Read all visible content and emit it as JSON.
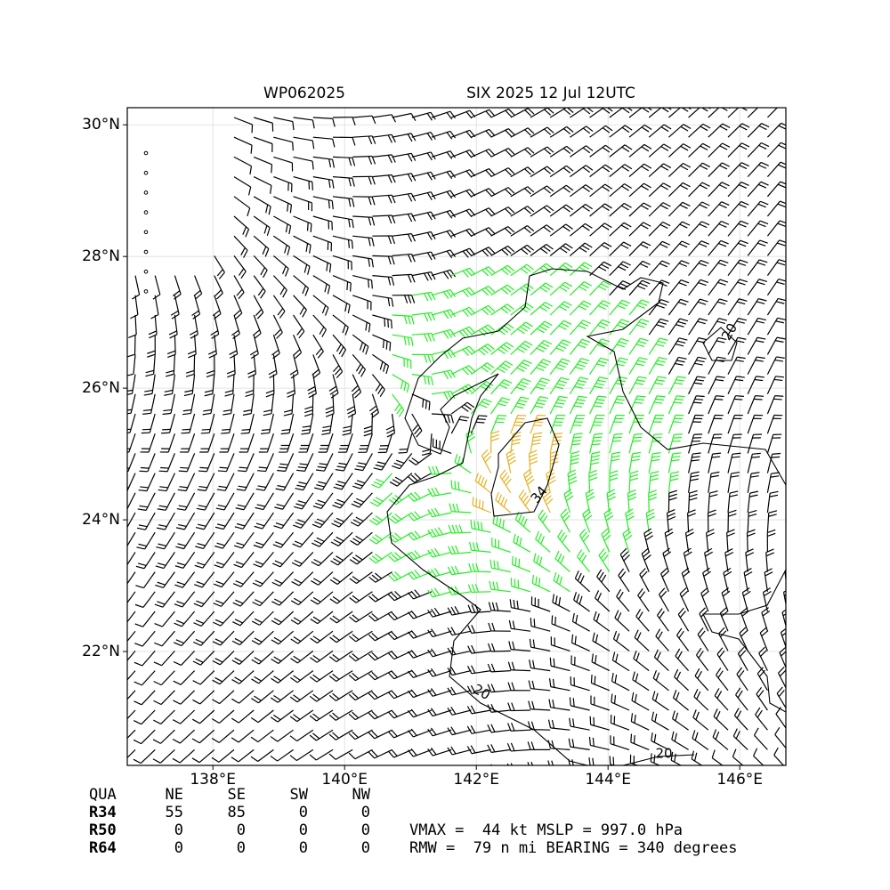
{
  "header": {
    "title_left": "WP062025",
    "title_right": "SIX 2025 12 Jul 12UTC"
  },
  "map": {
    "xlim": [
      136.7,
      146.7
    ],
    "ylim": [
      20.27,
      30.26
    ],
    "xticks": [
      {
        "value": 138,
        "label": "138°E"
      },
      {
        "value": 140,
        "label": "140°E"
      },
      {
        "value": 142,
        "label": "142°E"
      },
      {
        "value": 144,
        "label": "144°E"
      },
      {
        "value": 146,
        "label": "146°E"
      }
    ],
    "yticks": [
      {
        "value": 22,
        "label": "22°N"
      },
      {
        "value": 24,
        "label": "24°N"
      },
      {
        "value": 26,
        "label": "26°N"
      },
      {
        "value": 28,
        "label": "28°N"
      },
      {
        "value": 30,
        "label": "30°N"
      }
    ],
    "contour_labels": [
      "20",
      "34",
      "20",
      "20"
    ]
  },
  "table": {
    "header": [
      "QUA",
      "NE",
      "SE",
      "SW",
      "NW"
    ],
    "rows": [
      [
        "R34",
        55,
        85,
        0,
        0
      ],
      [
        "R50",
        0,
        0,
        0,
        0
      ],
      [
        "R64",
        0,
        0,
        0,
        0
      ]
    ]
  },
  "stats": [
    "VMAX =  44 kt MSLP = 997.0 hPa",
    "RMW =  79 n mi BEARING = 340 degrees"
  ]
}
